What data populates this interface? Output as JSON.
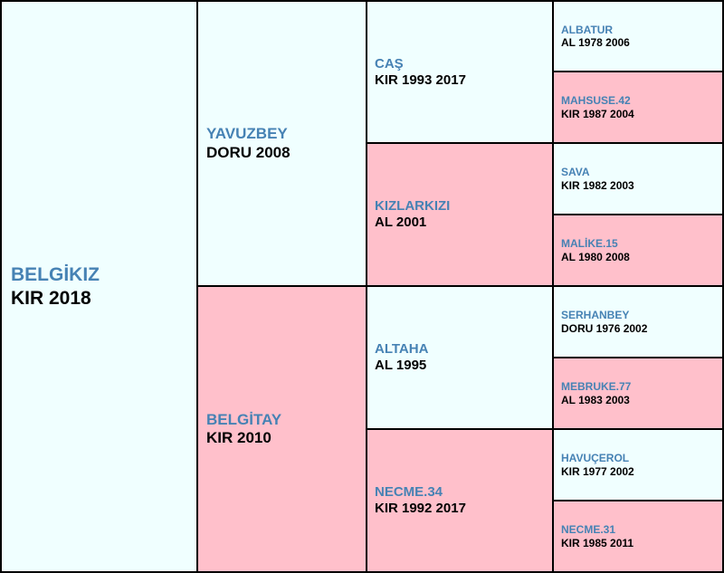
{
  "subject": {
    "name": "BELGİKIZ",
    "info": "KIR 2018"
  },
  "sire": {
    "name": "YAVUZBEY",
    "info": "DORU 2008"
  },
  "dam": {
    "name": "BELGİTAY",
    "info": "KIR 2010"
  },
  "sire_sire": {
    "name": "CAŞ",
    "info": "KIR 1993 2017"
  },
  "sire_dam": {
    "name": "KIZLARKIZI",
    "info": "AL 2001"
  },
  "dam_sire": {
    "name": "ALTAHA",
    "info": "AL 1995"
  },
  "dam_dam": {
    "name": "NECME.34",
    "info": "KIR 1992 2017"
  },
  "g3": [
    {
      "name": "ALBATUR",
      "info": "AL 1978 2006"
    },
    {
      "name": "MAHSUSE.42",
      "info": "KIR 1987 2004"
    },
    {
      "name": "SAVA",
      "info": "KIR 1982 2003"
    },
    {
      "name": "MALİKE.15",
      "info": "AL 1980 2008"
    },
    {
      "name": "SERHANBEY",
      "info": "DORU 1976 2002"
    },
    {
      "name": "MEBRUKE.77",
      "info": "AL 1983 2003"
    },
    {
      "name": "HAVUÇEROL",
      "info": "KIR 1977 2002"
    },
    {
      "name": "NECME.31",
      "info": "KIR 1985 2011"
    }
  ],
  "colors": {
    "male": "#f0ffff",
    "female": "#ffc0cb",
    "name": "#4682b4",
    "border": "#000000"
  }
}
